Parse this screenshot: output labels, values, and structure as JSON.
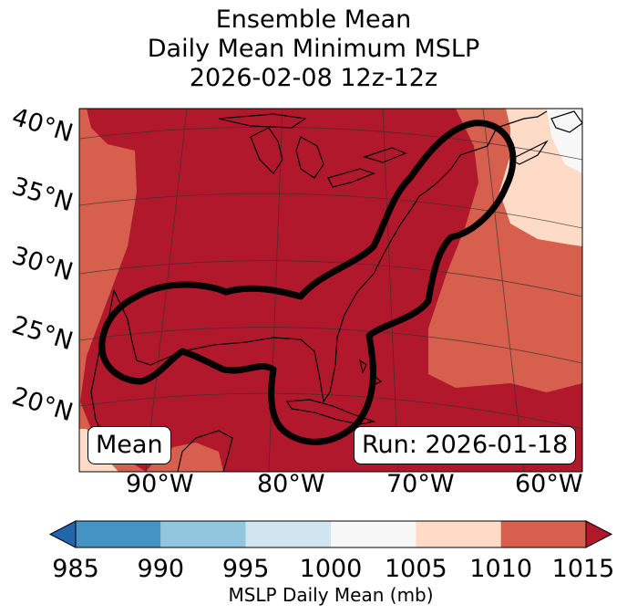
{
  "title_lines": [
    "Ensemble Mean",
    "Daily Mean Minimum MSLP",
    "2026-02-08 12z-12z"
  ],
  "lat_labels": [
    "40°N",
    "35°N",
    "30°N",
    "25°N",
    "20°N"
  ],
  "lon_labels": [
    "90°W",
    "80°W",
    "70°W",
    "60°W"
  ],
  "mean_label": "Mean",
  "run_label": "Run: 2026-01-18",
  "colorbar": {
    "label": "MSLP Daily Mean (mb)",
    "ticks": [
      "985",
      "990",
      "995",
      "1000",
      "1005",
      "1010",
      "1015"
    ],
    "colors": [
      "#4393c3",
      "#92c5de",
      "#d1e5f0",
      "#f7f7f7",
      "#fddbc7",
      "#d6604d",
      "#b2182b"
    ],
    "under_color": "#2166ac",
    "over_color": "#b2182b"
  },
  "map_fill_colors": {
    "1010_1015": "#b2182b",
    "1005_1010": "#d6604d",
    "1000_1005": "#fddbc7",
    "995_1000": "#f7f7f7"
  },
  "contour_color": "#000000"
}
